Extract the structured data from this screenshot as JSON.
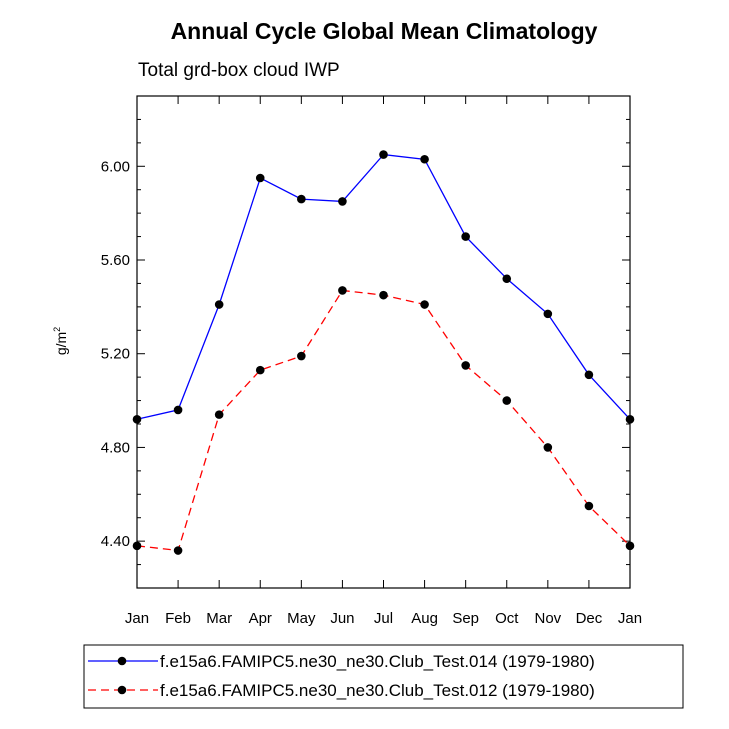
{
  "chart_data": {
    "type": "line",
    "title": "Annual Cycle Global Mean Climatology",
    "subtitle": "Total grd-box cloud IWP",
    "xlabel": "",
    "ylabel": "g/m",
    "ylabel_superscript": "2",
    "categories": [
      "Jan",
      "Feb",
      "Mar",
      "Apr",
      "May",
      "Jun",
      "Jul",
      "Aug",
      "Sep",
      "Oct",
      "Nov",
      "Dec",
      "Jan"
    ],
    "ylim": [
      4.2,
      6.3
    ],
    "yticks": [
      4.4,
      4.8,
      5.2,
      5.6,
      6.0
    ],
    "ytick_labels": [
      "4.40",
      "4.80",
      "5.20",
      "5.60",
      "6.00"
    ],
    "legend_position": "bottom",
    "series": [
      {
        "name": "f.e15a6.FAMIPC5.ne30_ne30.Club_Test.014 (1979-1980)",
        "color": "#0000ff",
        "dash": "solid",
        "values": [
          4.92,
          4.96,
          5.41,
          5.95,
          5.86,
          5.85,
          6.05,
          6.03,
          5.7,
          5.52,
          5.37,
          5.11,
          4.92
        ]
      },
      {
        "name": "f.e15a6.FAMIPC5.ne30_ne30.Club_Test.012 (1979-1980)",
        "color": "#ff0000",
        "dash": "dashed",
        "values": [
          4.38,
          4.36,
          4.94,
          5.13,
          5.19,
          5.47,
          5.45,
          5.41,
          5.15,
          5.0,
          4.8,
          4.55,
          4.38
        ]
      }
    ]
  }
}
